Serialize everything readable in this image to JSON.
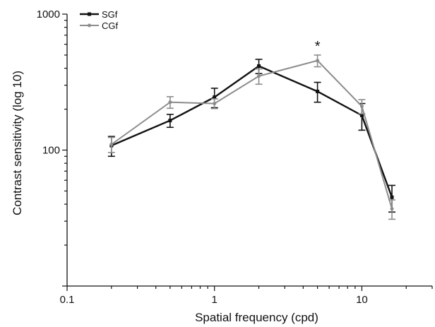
{
  "chart_data": {
    "type": "line",
    "title": "",
    "xlabel": "Spatial frequency (cpd)",
    "ylabel": "Contrast sensitivity (log 10)",
    "xscale": "log",
    "yscale": "log",
    "xlim": [
      0.1,
      30
    ],
    "ylim": [
      10,
      1000
    ],
    "xticks": [
      0.1,
      1,
      10
    ],
    "xtick_labels": [
      "0.1",
      "1",
      "10"
    ],
    "yticks": [
      100,
      1000
    ],
    "ytick_labels": [
      "100",
      "1000"
    ],
    "grid": false,
    "legend": "top-left",
    "annotations": [
      {
        "text": "*",
        "x": 5
      }
    ],
    "series": [
      {
        "name": "SGf",
        "color": "#111111",
        "marker": "square",
        "x": [
          0.2,
          0.5,
          1,
          2,
          5,
          10,
          16
        ],
        "y": [
          108,
          165,
          245,
          415,
          270,
          180,
          45
        ],
        "err": [
          18,
          18,
          40,
          50,
          45,
          40,
          10
        ]
      },
      {
        "name": "CGf",
        "color": "#8c8c8c",
        "marker": "circle",
        "x": [
          0.2,
          0.5,
          1,
          2,
          5,
          10,
          16
        ],
        "y": [
          110,
          225,
          220,
          350,
          455,
          210,
          37
        ],
        "err": [
          14,
          22,
          18,
          45,
          45,
          25,
          6
        ]
      }
    ]
  }
}
